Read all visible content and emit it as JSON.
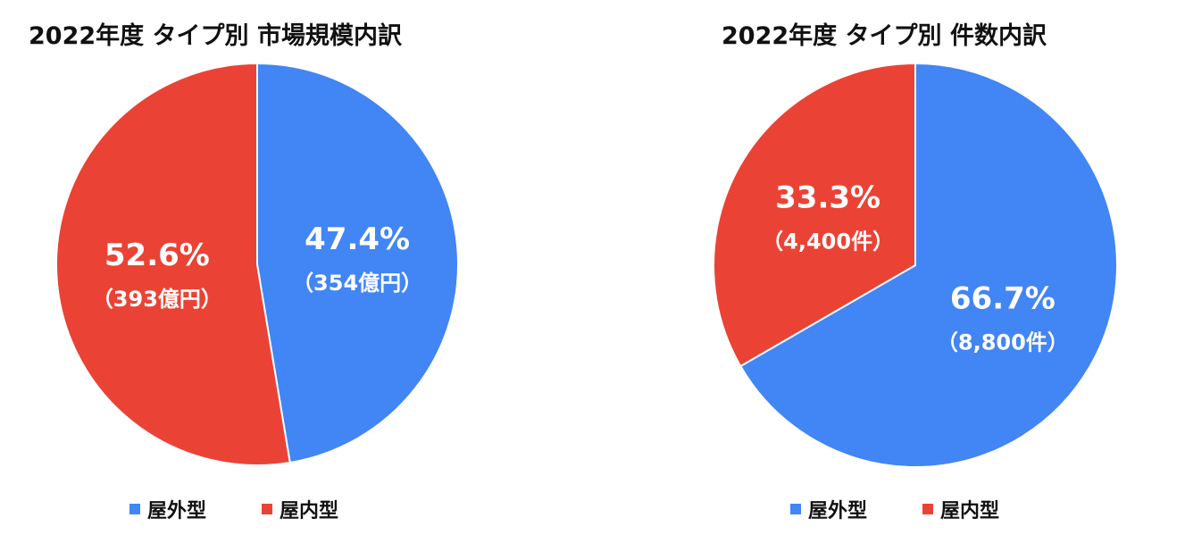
{
  "colors": {
    "outdoor": "#4285f4",
    "indoor": "#ea4335"
  },
  "chart_data": [
    {
      "type": "pie",
      "title": "2022年度 タイプ別 市場規模内訳",
      "categories": [
        "屋外型",
        "屋内型"
      ],
      "values": [
        354,
        393
      ],
      "unit": "億円",
      "slices": [
        {
          "label": "屋外型",
          "value": 354,
          "percent_label": "47.4%",
          "value_label": "（354億円）",
          "color": "#4285f4"
        },
        {
          "label": "屋内型",
          "value": 393,
          "percent_label": "52.6%",
          "value_label": "（393億円）",
          "color": "#ea4335"
        }
      ],
      "legend": [
        "屋外型",
        "屋内型"
      ],
      "legend_position": "bottom"
    },
    {
      "type": "pie",
      "title": "2022年度 タイプ別 件数内訳",
      "categories": [
        "屋外型",
        "屋内型"
      ],
      "values": [
        8800,
        4400
      ],
      "unit": "件",
      "slices": [
        {
          "label": "屋外型",
          "value": 8800,
          "percent_label": "66.7%",
          "value_label": "（8,800件）",
          "color": "#4285f4"
        },
        {
          "label": "屋内型",
          "value": 4400,
          "percent_label": "33.3%",
          "value_label": "（4,400件）",
          "color": "#ea4335"
        }
      ],
      "legend": [
        "屋外型",
        "屋内型"
      ],
      "legend_position": "bottom"
    }
  ]
}
